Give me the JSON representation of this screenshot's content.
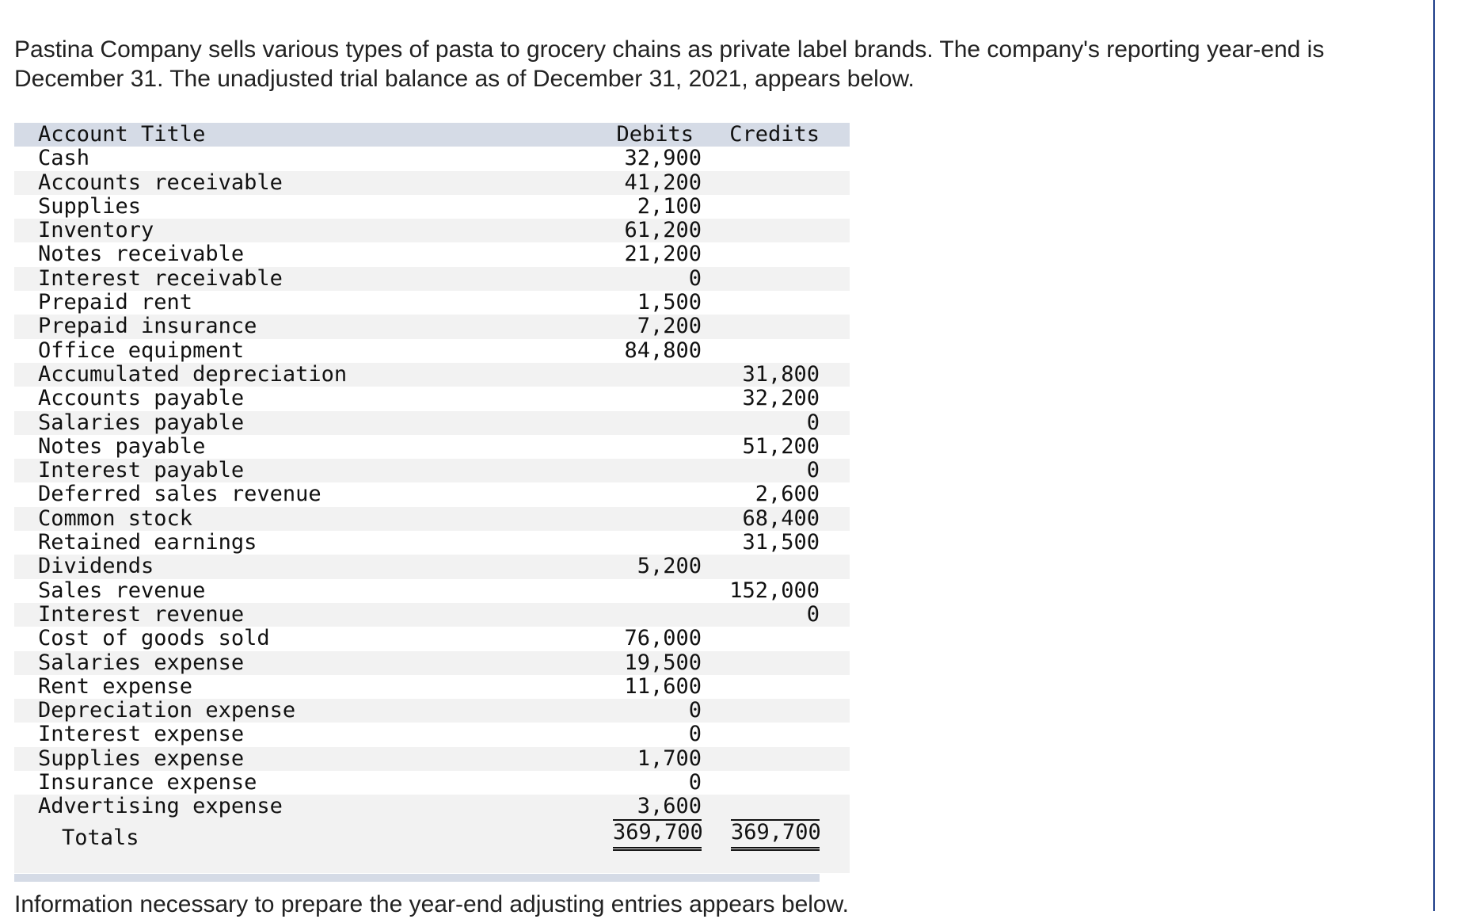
{
  "intro": "Pastina Company sells various types of pasta to grocery chains as private label brands. The company's reporting year-end is December 31. The unadjusted trial balance as of December 31, 2021, appears below.",
  "trial_balance": {
    "headers": {
      "title": "Account Title",
      "debits": "Debits",
      "credits": "Credits"
    },
    "rows": [
      {
        "title": "Cash",
        "debit": "32,900",
        "credit": ""
      },
      {
        "title": "Accounts receivable",
        "debit": "41,200",
        "credit": ""
      },
      {
        "title": "Supplies",
        "debit": "2,100",
        "credit": ""
      },
      {
        "title": "Inventory",
        "debit": "61,200",
        "credit": ""
      },
      {
        "title": "Notes receivable",
        "debit": "21,200",
        "credit": ""
      },
      {
        "title": "Interest receivable",
        "debit": "0",
        "credit": ""
      },
      {
        "title": "Prepaid rent",
        "debit": "1,500",
        "credit": ""
      },
      {
        "title": "Prepaid insurance",
        "debit": "7,200",
        "credit": ""
      },
      {
        "title": "Office equipment",
        "debit": "84,800",
        "credit": ""
      },
      {
        "title": "Accumulated depreciation",
        "debit": "",
        "credit": "31,800"
      },
      {
        "title": "Accounts payable",
        "debit": "",
        "credit": "32,200"
      },
      {
        "title": "Salaries payable",
        "debit": "",
        "credit": "0"
      },
      {
        "title": "Notes payable",
        "debit": "",
        "credit": "51,200"
      },
      {
        "title": "Interest payable",
        "debit": "",
        "credit": "0"
      },
      {
        "title": "Deferred sales revenue",
        "debit": "",
        "credit": "2,600"
      },
      {
        "title": "Common stock",
        "debit": "",
        "credit": "68,400"
      },
      {
        "title": "Retained earnings",
        "debit": "",
        "credit": "31,500"
      },
      {
        "title": "Dividends",
        "debit": "5,200",
        "credit": ""
      },
      {
        "title": "Sales revenue",
        "debit": "",
        "credit": "152,000"
      },
      {
        "title": "Interest revenue",
        "debit": "",
        "credit": "0"
      },
      {
        "title": "Cost of goods sold",
        "debit": "76,000",
        "credit": ""
      },
      {
        "title": "Salaries expense",
        "debit": "19,500",
        "credit": ""
      },
      {
        "title": "Rent expense",
        "debit": "11,600",
        "credit": ""
      },
      {
        "title": "Depreciation expense",
        "debit": "0",
        "credit": ""
      },
      {
        "title": "Interest expense",
        "debit": "0",
        "credit": ""
      },
      {
        "title": "Supplies expense",
        "debit": "1,700",
        "credit": ""
      },
      {
        "title": "Insurance expense",
        "debit": "0",
        "credit": ""
      },
      {
        "title": "Advertising expense",
        "debit": "3,600",
        "credit": ""
      }
    ],
    "totals": {
      "label": "Totals",
      "debit": "369,700",
      "credit": "369,700"
    }
  },
  "info": "Information necessary to prepare the year-end adjusting entries appears below."
}
